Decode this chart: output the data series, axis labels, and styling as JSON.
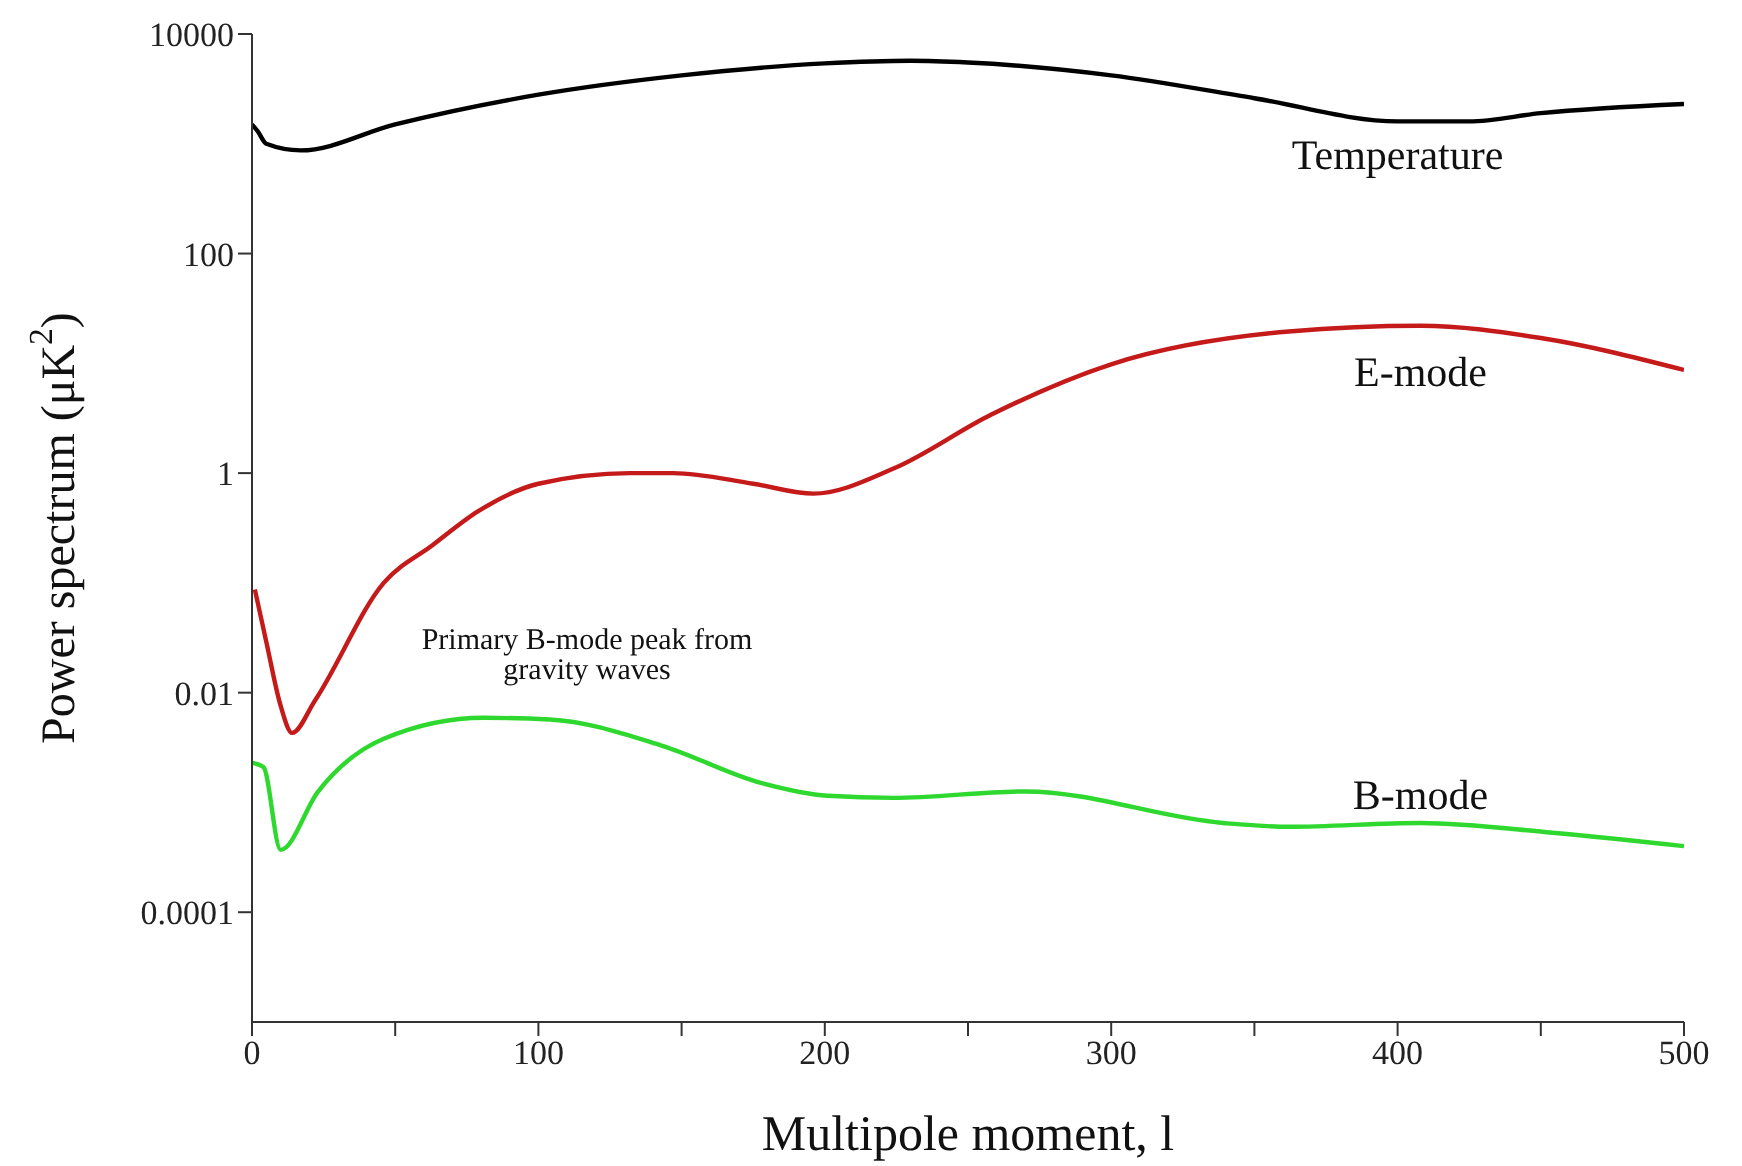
{
  "chart_data": {
    "type": "line",
    "xlabel": "Multipole moment, l",
    "ylabel": "Power spectrum (μK$^{2}$)",
    "log": "y",
    "marker": "none",
    "xlim": [
      0,
      500
    ],
    "ylim": [
      1e-05,
      10000
    ],
    "xticks": [
      0,
      {
        "value": 50,
        "label": null
      },
      100,
      {
        "value": 150,
        "label": null
      },
      200,
      {
        "value": 250,
        "label": null
      },
      300,
      {
        "value": 350,
        "label": null
      },
      400,
      {
        "value": 450,
        "label": null
      },
      500
    ],
    "yticks": [
      0.0001,
      0.01,
      1,
      100,
      10000
    ],
    "annotations": [
      "Primary B-mode peak from gravity waves"
    ],
    "series": [
      {
        "name": "Temperature",
        "color": "#000000",
        "x": [
          0,
          2,
          5,
          17,
          50,
          100,
          150,
          200,
          230,
          250,
          300,
          350,
          400,
          425,
          450,
          500
        ],
        "values": [
          1500,
          1300,
          1000,
          870,
          1500,
          2800,
          4200,
          5400,
          5700,
          5500,
          4200,
          2600,
          1600,
          1600,
          1900,
          2300
        ]
      },
      {
        "name": "E-mode",
        "color": "#c41a1a",
        "x": [
          1,
          5,
          10,
          14,
          22,
          46,
          63,
          79,
          100,
          132,
          147,
          175,
          196,
          224,
          258,
          300,
          362,
          408,
          450,
          500
        ],
        "values": [
          0.087,
          0.029,
          0.0076,
          0.0043,
          0.0085,
          0.1,
          0.22,
          0.45,
          0.8,
          1,
          1,
          0.8,
          0.65,
          1.1,
          3.4,
          9.8,
          19.5,
          22,
          17,
          8.7
        ]
      },
      {
        "name": "B-mode",
        "color": "#2ed82e",
        "x": [
          0,
          4,
          10,
          23,
          46,
          81,
          104,
          143,
          178,
          201,
          224,
          270,
          339,
          362,
          408,
          454,
          500
        ],
        "values": [
          0.0023,
          0.0021,
          0.00037,
          0.00125,
          0.0038,
          0.0059,
          0.0057,
          0.0033,
          0.0015,
          0.00115,
          0.0011,
          0.00126,
          0.00065,
          0.0006,
          0.00065,
          0.00053,
          0.0004
        ]
      }
    ]
  }
}
